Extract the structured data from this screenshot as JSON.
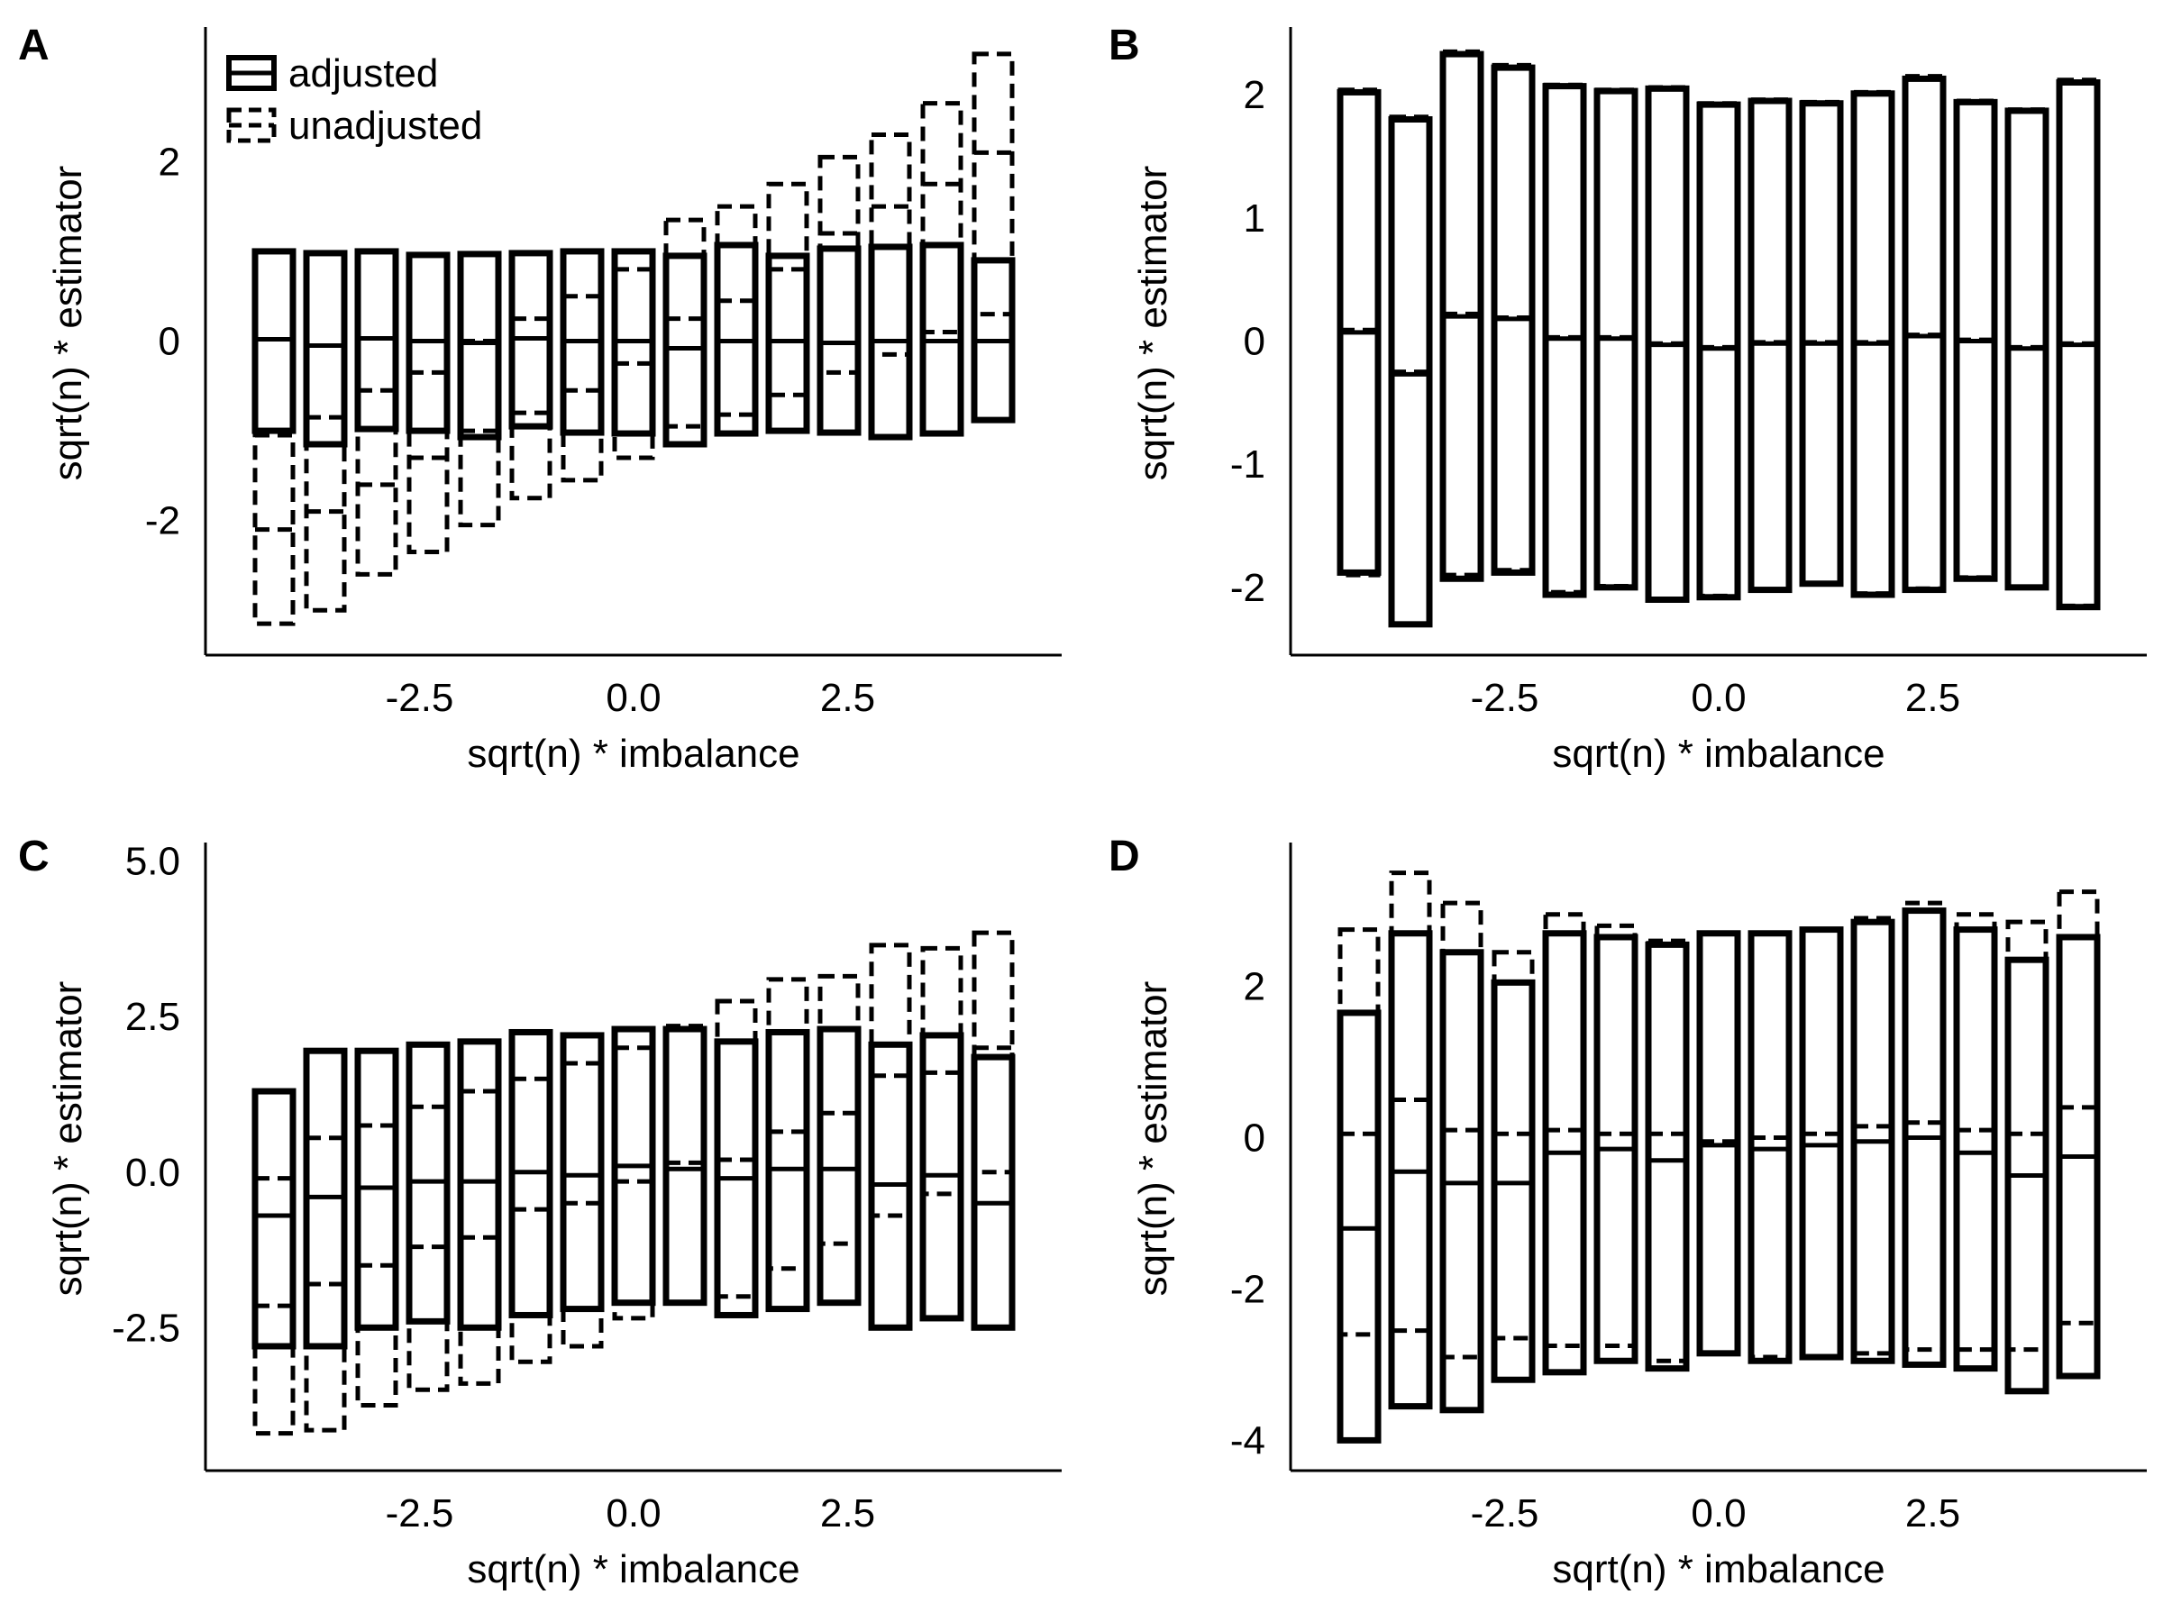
{
  "legend": {
    "items": [
      {
        "label": "adjusted",
        "style": "solid"
      },
      {
        "label": "unadjusted",
        "style": "dashed"
      }
    ]
  },
  "chart_data": [
    {
      "panel": "A",
      "type": "box",
      "xlabel": "sqrt(n) * imbalance",
      "ylabel": "sqrt(n) * estimator",
      "xticks": [
        -2.5,
        0.0,
        2.5
      ],
      "xtick_labels": [
        "-2.5",
        "0.0",
        "2.5"
      ],
      "yticks": [
        -2,
        0,
        2
      ],
      "ytick_labels": [
        "-2",
        "0",
        "2"
      ],
      "xlim": [
        -5.0,
        5.0
      ],
      "ylim": [
        -3.5,
        3.5
      ],
      "x": [
        -4.2,
        -3.6,
        -3.0,
        -2.4,
        -1.8,
        -1.2,
        -0.6,
        0.0,
        0.6,
        1.2,
        1.8,
        2.4,
        3.0,
        3.6,
        4.2
      ],
      "series": [
        {
          "name": "adjusted",
          "low": [
            -1.0,
            -1.15,
            -0.98,
            -1.0,
            -1.07,
            -0.95,
            -1.02,
            -1.03,
            -1.15,
            -1.03,
            -1.0,
            -1.02,
            -1.07,
            -1.03,
            -0.88
          ],
          "median": [
            0.02,
            -0.05,
            0.03,
            0.0,
            -0.02,
            0.03,
            0.0,
            0.0,
            -0.08,
            0.0,
            0.0,
            -0.02,
            0.0,
            0.0,
            0.0
          ],
          "high": [
            1.0,
            0.98,
            1.0,
            0.96,
            0.97,
            0.98,
            1.0,
            1.0,
            0.95,
            1.07,
            0.95,
            1.03,
            1.05,
            1.07,
            0.9
          ]
        },
        {
          "name": "unadjusted",
          "low": [
            -3.15,
            -3.0,
            -2.6,
            -2.35,
            -2.05,
            -1.75,
            -1.55,
            -1.3,
            -0.95,
            -0.82,
            -0.6,
            -0.35,
            -0.15,
            0.1,
            0.3
          ],
          "median": [
            -2.1,
            -1.9,
            -1.6,
            -1.3,
            -1.0,
            -0.8,
            -0.55,
            -0.25,
            0.25,
            0.45,
            0.8,
            1.2,
            1.5,
            1.75,
            2.1
          ],
          "high": [
            -1.05,
            -0.85,
            -0.55,
            -0.35,
            0.0,
            0.25,
            0.5,
            0.8,
            1.35,
            1.5,
            1.75,
            2.05,
            2.3,
            2.65,
            3.2
          ]
        }
      ]
    },
    {
      "panel": "B",
      "type": "box",
      "xlabel": "sqrt(n) * imbalance",
      "ylabel": "sqrt(n) * estimator",
      "xticks": [
        -2.5,
        0.0,
        2.5
      ],
      "xtick_labels": [
        "-2.5",
        "0.0",
        "2.5"
      ],
      "yticks": [
        -2,
        -1,
        0,
        1,
        2
      ],
      "ytick_labels": [
        "-2",
        "-1",
        "0",
        "1",
        "2"
      ],
      "xlim": [
        -5.0,
        5.0
      ],
      "ylim": [
        -2.55,
        2.55
      ],
      "x": [
        -4.2,
        -3.6,
        -3.0,
        -2.4,
        -1.8,
        -1.2,
        -0.6,
        0.0,
        0.6,
        1.2,
        1.8,
        2.4,
        3.0,
        3.6,
        4.2
      ],
      "series": [
        {
          "name": "adjusted",
          "low": [
            -1.88,
            -2.3,
            -1.93,
            -1.88,
            -2.06,
            -2.0,
            -2.1,
            -2.08,
            -2.02,
            -1.97,
            -2.06,
            -2.02,
            -1.93,
            -2.0,
            -2.16
          ],
          "median": [
            0.07,
            -0.27,
            0.2,
            0.18,
            0.02,
            0.02,
            -0.03,
            -0.06,
            -0.02,
            -0.02,
            -0.02,
            0.04,
            0.0,
            -0.06,
            -0.03
          ],
          "high": [
            2.02,
            1.8,
            2.33,
            2.22,
            2.07,
            2.03,
            2.05,
            1.92,
            1.95,
            1.93,
            2.01,
            2.13,
            1.94,
            1.87,
            2.1
          ]
        },
        {
          "name": "unadjusted",
          "low": [
            -1.9,
            -2.3,
            -1.9,
            -1.86,
            -2.04,
            -1.99,
            -2.1,
            -2.07,
            -2.02,
            -1.97,
            -2.05,
            -2.01,
            -1.92,
            -2.0,
            -2.15
          ],
          "median": [
            0.09,
            -0.25,
            0.22,
            0.19,
            0.03,
            0.03,
            -0.02,
            -0.05,
            -0.01,
            -0.01,
            -0.01,
            0.05,
            0.01,
            -0.05,
            -0.02
          ],
          "high": [
            2.04,
            1.82,
            2.35,
            2.24,
            2.08,
            2.04,
            2.06,
            1.93,
            1.96,
            1.94,
            2.02,
            2.15,
            1.95,
            1.88,
            2.12
          ]
        }
      ]
    },
    {
      "panel": "C",
      "type": "box",
      "xlabel": "sqrt(n) * imbalance",
      "ylabel": "sqrt(n) * estimator",
      "xticks": [
        -2.5,
        0.0,
        2.5
      ],
      "xtick_labels": [
        "-2.5",
        "0.0",
        "2.5"
      ],
      "yticks": [
        -2.5,
        0.0,
        2.5,
        5.0
      ],
      "ytick_labels": [
        "-2.5",
        "0.0",
        "2.5",
        "5.0"
      ],
      "xlim": [
        -5.0,
        5.0
      ],
      "ylim": [
        -4.8,
        5.3
      ],
      "x": [
        -4.2,
        -3.6,
        -3.0,
        -2.4,
        -1.8,
        -1.2,
        -0.6,
        0.0,
        0.6,
        1.2,
        1.8,
        2.4,
        3.0,
        3.6,
        4.2
      ],
      "series": [
        {
          "name": "adjusted",
          "low": [
            -2.8,
            -2.8,
            -2.5,
            -2.4,
            -2.5,
            -2.3,
            -2.2,
            -2.1,
            -2.1,
            -2.3,
            -2.2,
            -2.1,
            -2.5,
            -2.35,
            -2.5
          ],
          "median": [
            -0.7,
            -0.4,
            -0.25,
            -0.15,
            -0.15,
            0.0,
            -0.05,
            0.1,
            0.05,
            -0.1,
            0.05,
            0.05,
            -0.2,
            -0.05,
            -0.5
          ],
          "high": [
            1.3,
            1.95,
            1.95,
            2.05,
            2.1,
            2.25,
            2.2,
            2.3,
            2.3,
            2.1,
            2.25,
            2.3,
            2.05,
            2.2,
            1.85
          ]
        },
        {
          "name": "unadjusted",
          "low": [
            -4.2,
            -4.15,
            -3.75,
            -3.5,
            -3.4,
            -3.05,
            -2.8,
            -2.35,
            -2.1,
            -2.0,
            -1.55,
            -1.15,
            -0.7,
            -0.35,
            0.0
          ],
          "median": [
            -2.15,
            -1.8,
            -1.5,
            -1.2,
            -1.05,
            -0.6,
            -0.5,
            -0.15,
            0.15,
            0.2,
            0.65,
            0.95,
            1.55,
            1.6,
            2.0
          ],
          "high": [
            -0.1,
            0.55,
            0.75,
            1.05,
            1.3,
            1.5,
            1.75,
            2.0,
            2.35,
            2.75,
            3.1,
            3.15,
            3.65,
            3.6,
            3.85
          ]
        }
      ]
    },
    {
      "panel": "D",
      "type": "box",
      "xlabel": "sqrt(n) * imbalance",
      "ylabel": "sqrt(n) * estimator",
      "xticks": [
        -2.5,
        0.0,
        2.5
      ],
      "xtick_labels": [
        "-2.5",
        "0.0",
        "2.5"
      ],
      "yticks": [
        -4,
        -2,
        0,
        2
      ],
      "ytick_labels": [
        "-4",
        "-2",
        "0",
        "2"
      ],
      "xlim": [
        -5.0,
        5.0
      ],
      "ylim": [
        -4.4,
        3.9
      ],
      "x": [
        -4.2,
        -3.6,
        -3.0,
        -2.4,
        -1.8,
        -1.2,
        -0.6,
        0.0,
        0.6,
        1.2,
        1.8,
        2.4,
        3.0,
        3.6,
        4.2
      ],
      "series": [
        {
          "name": "adjusted",
          "low": [
            -4.0,
            -3.55,
            -3.6,
            -3.2,
            -3.1,
            -2.95,
            -3.05,
            -2.85,
            -2.95,
            -2.9,
            -2.95,
            -3.0,
            -3.05,
            -3.35,
            -3.15
          ],
          "median": [
            -1.2,
            -0.45,
            -0.6,
            -0.6,
            -0.2,
            -0.15,
            -0.3,
            -0.1,
            -0.15,
            -0.1,
            -0.05,
            0.0,
            -0.2,
            -0.5,
            -0.25
          ],
          "high": [
            1.65,
            2.7,
            2.45,
            2.05,
            2.7,
            2.65,
            2.55,
            2.7,
            2.7,
            2.75,
            2.85,
            3.0,
            2.75,
            2.35,
            2.65
          ]
        },
        {
          "name": "unadjusted",
          "low": [
            -2.6,
            -2.55,
            -2.9,
            -2.65,
            -2.75,
            -2.75,
            -2.95,
            -2.85,
            -2.9,
            -2.9,
            -2.85,
            -2.8,
            -2.8,
            -2.8,
            -2.45
          ],
          "median": [
            0.05,
            0.5,
            0.1,
            0.05,
            0.1,
            0.05,
            0.05,
            -0.05,
            0.0,
            0.05,
            0.15,
            0.2,
            0.1,
            0.05,
            0.4
          ],
          "high": [
            2.75,
            3.5,
            3.1,
            2.45,
            2.95,
            2.8,
            2.6,
            2.7,
            2.7,
            2.75,
            2.9,
            3.1,
            2.95,
            2.85,
            3.25
          ]
        }
      ]
    }
  ]
}
